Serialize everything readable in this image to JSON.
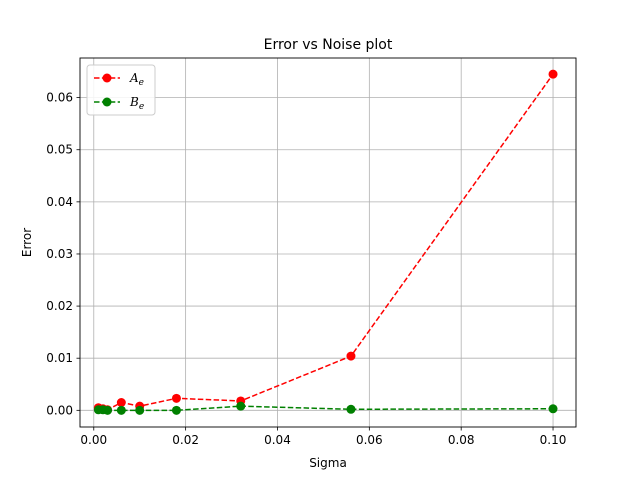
{
  "chart_data": {
    "type": "line",
    "title": "Error vs Noise plot",
    "xlabel": "Sigma",
    "ylabel": "Error",
    "xlim": [
      -0.003,
      0.105
    ],
    "ylim": [
      -0.0032,
      0.0676
    ],
    "xticks": [
      0.0,
      0.02,
      0.04,
      0.06,
      0.08,
      0.1
    ],
    "xtick_labels": [
      "0.00",
      "0.02",
      "0.04",
      "0.06",
      "0.08",
      "0.10"
    ],
    "yticks": [
      0.0,
      0.01,
      0.02,
      0.03,
      0.04,
      0.05,
      0.06
    ],
    "ytick_labels": [
      "0.00",
      "0.01",
      "0.02",
      "0.03",
      "0.04",
      "0.05",
      "0.06"
    ],
    "grid": true,
    "legend_position": "upper-left",
    "series": [
      {
        "name": "A",
        "name_subscript": "e",
        "color": "#ff0000",
        "line_style": "dashed",
        "marker": "circle",
        "points": [
          {
            "x": 0.001,
            "y": 0.0005
          },
          {
            "x": 0.002,
            "y": 0.0003
          },
          {
            "x": 0.003,
            "y": 0.0001
          },
          {
            "x": 0.006,
            "y": 0.0015
          },
          {
            "x": 0.01,
            "y": 0.0008
          },
          {
            "x": 0.018,
            "y": 0.0023
          },
          {
            "x": 0.032,
            "y": 0.0018
          },
          {
            "x": 0.056,
            "y": 0.0104
          },
          {
            "x": 0.1,
            "y": 0.0645
          }
        ]
      },
      {
        "name": "B",
        "name_subscript": "e",
        "color": "#008000",
        "line_style": "dashed",
        "marker": "circle",
        "points": [
          {
            "x": 0.001,
            "y": 0.0001
          },
          {
            "x": 0.002,
            "y": 0.0001
          },
          {
            "x": 0.003,
            "y": 0.0
          },
          {
            "x": 0.006,
            "y": 0.0
          },
          {
            "x": 0.01,
            "y": 0.0
          },
          {
            "x": 0.018,
            "y": 0.0
          },
          {
            "x": 0.032,
            "y": 0.0008
          },
          {
            "x": 0.056,
            "y": 0.0002
          },
          {
            "x": 0.1,
            "y": 0.0003
          }
        ]
      }
    ]
  }
}
